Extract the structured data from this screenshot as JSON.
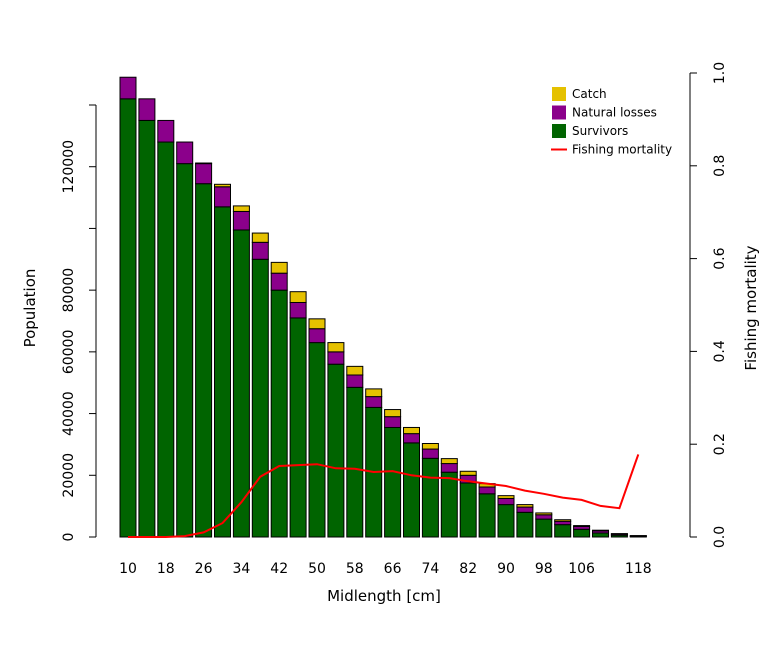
{
  "chart_data": {
    "type": "bar",
    "stacked": true,
    "xlabel": "Midlength [cm]",
    "ylabel": "Population",
    "y2label": "Fishing mortality",
    "x_tick_labels": [
      "10",
      "18",
      "26",
      "34",
      "42",
      "50",
      "58",
      "66",
      "74",
      "82",
      "90",
      "98",
      "106",
      "118"
    ],
    "y_ticks": [
      0,
      20000,
      40000,
      60000,
      80000,
      120000
    ],
    "y_tick_labels": [
      "0",
      "20000",
      "40000",
      "60000",
      "80000",
      "120000"
    ],
    "ylim": [
      0,
      140000
    ],
    "y2_ticks": [
      0.0,
      0.2,
      0.4,
      0.6,
      0.8,
      1.0
    ],
    "y2_tick_labels": [
      "0.0",
      "0.2",
      "0.4",
      "0.6",
      "0.8",
      "1.0"
    ],
    "y2lim": [
      0,
      1.0
    ],
    "categories": [
      10,
      14,
      18,
      22,
      26,
      30,
      34,
      38,
      42,
      46,
      50,
      54,
      58,
      62,
      66,
      70,
      74,
      78,
      82,
      86,
      90,
      94,
      98,
      102,
      106,
      110,
      114,
      118
    ],
    "series": [
      {
        "name": "Survivors",
        "color": "#006400",
        "values": [
          142000,
          135000,
          128000,
          121000,
          114500,
          107000,
          99500,
          90000,
          80000,
          71000,
          63000,
          56000,
          48500,
          42000,
          35500,
          30500,
          25500,
          21000,
          17500,
          14000,
          10500,
          8000,
          5800,
          4000,
          2500,
          1300,
          600,
          200
        ]
      },
      {
        "name": "Natural losses",
        "color": "#8B008B",
        "values": [
          7000,
          7000,
          7000,
          7000,
          6500,
          6500,
          6000,
          5500,
          5500,
          5000,
          4500,
          4000,
          4000,
          3500,
          3500,
          3000,
          3000,
          2800,
          2500,
          2200,
          2000,
          1700,
          1400,
          1100,
          900,
          700,
          400,
          200
        ]
      },
      {
        "name": "Catch",
        "color": "#E5C100",
        "values": [
          0,
          0,
          0,
          0,
          200,
          800,
          1800,
          3000,
          3500,
          3500,
          3200,
          3000,
          2800,
          2500,
          2300,
          2000,
          1800,
          1600,
          1300,
          1100,
          900,
          800,
          600,
          500,
          300,
          200,
          100,
          50
        ]
      }
    ],
    "line_series": {
      "name": "Fishing mortality",
      "color": "#FF0000",
      "axis": "right",
      "values": [
        0.0,
        0.0,
        0.0,
        0.002,
        0.01,
        0.03,
        0.075,
        0.13,
        0.153,
        0.155,
        0.157,
        0.148,
        0.147,
        0.14,
        0.142,
        0.133,
        0.128,
        0.127,
        0.12,
        0.115,
        0.11,
        0.1,
        0.093,
        0.085,
        0.08,
        0.067,
        0.062,
        0.178
      ]
    },
    "legend_position": "top-right",
    "legend_items": [
      {
        "label": "Catch",
        "color": "#E5C100",
        "kind": "box"
      },
      {
        "label": "Natural losses",
        "color": "#8B008B",
        "kind": "box"
      },
      {
        "label": "Survivors",
        "color": "#006400",
        "kind": "box"
      },
      {
        "label": "Fishing mortality",
        "color": "#FF0000",
        "kind": "line"
      }
    ]
  }
}
